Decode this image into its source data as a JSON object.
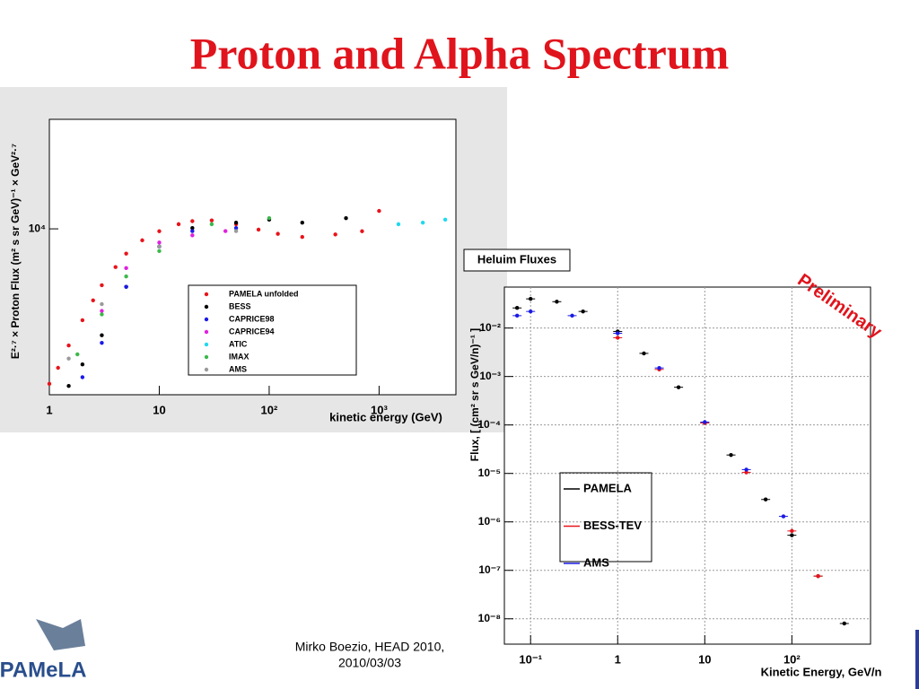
{
  "title": "Proton and Alpha Spectrum",
  "footer": {
    "author": "Mirko Boezio, HEAD 2010,",
    "date": "2010/03/03",
    "logo": "PAMeLA"
  },
  "chart_data": [
    {
      "type": "scatter",
      "log_x": true,
      "log_y": true,
      "grid": false,
      "x_label": "kinetic energy (GeV)",
      "y_label": "E²·⁷ × Proton Flux (m² s sr GeV)⁻¹ × GeV²·⁷",
      "xlim": [
        1,
        5000
      ],
      "ylim": [
        3500,
        20000
      ],
      "xticks": [
        1,
        10,
        {
          "value": 100,
          "label": "10²"
        },
        {
          "value": 1000,
          "label": "10³"
        }
      ],
      "yticks": [
        {
          "value": 10000,
          "label": "10⁴"
        }
      ],
      "series": [
        {
          "name": "PAMELA unfolded",
          "color": "#e8141b",
          "x": [
            1,
            1.2,
            1.5,
            2,
            2.5,
            3,
            4,
            5,
            7,
            10,
            15,
            20,
            30,
            50,
            80,
            120,
            200,
            400,
            700,
            1000
          ],
          "values": [
            3750,
            4150,
            4780,
            5610,
            6360,
            7000,
            7850,
            8550,
            9300,
            9850,
            10300,
            10500,
            10550,
            10300,
            9950,
            9690,
            9500,
            9650,
            9850,
            11200
          ]
        },
        {
          "name": "BESS",
          "color": "#000000",
          "x": [
            1.5,
            2,
            3,
            5,
            10,
            20,
            50,
            100,
            200,
            500
          ],
          "values": [
            3700,
            4240,
            5100,
            6930,
            8940,
            10050,
            10400,
            10600,
            10400,
            10700
          ]
        },
        {
          "name": "CAPRICE98",
          "color": "#1a1ae6",
          "x": [
            2,
            3,
            5,
            10,
            20,
            50
          ],
          "values": [
            3910,
            4860,
            6930,
            8940,
            9860,
            10050
          ]
        },
        {
          "name": "CAPRICE94",
          "color": "#e020e0",
          "x": [
            3,
            5,
            10,
            20,
            40
          ],
          "values": [
            5950,
            7800,
            9170,
            9600,
            9860
          ]
        },
        {
          "name": "ATIC",
          "color": "#20d8f0",
          "x": [
            1500,
            2500,
            4000
          ],
          "values": [
            10300,
            10400,
            10600
          ]
        },
        {
          "name": "IMAX",
          "color": "#3cb84a",
          "x": [
            1.8,
            3,
            5,
            10,
            30,
            100
          ],
          "values": [
            4520,
            5820,
            7400,
            8690,
            10300,
            10700
          ]
        },
        {
          "name": "AMS",
          "color": "#9a9a9a",
          "x": [
            1.5,
            3,
            10,
            50
          ],
          "values": [
            4400,
            6210,
            8940,
            9860
          ]
        }
      ]
    },
    {
      "type": "scatter",
      "log_x": true,
      "log_y": true,
      "grid": true,
      "title": "Heluim Fluxes",
      "annotation": "Preliminary",
      "x_label": "Kinetic Energy, GeV/n",
      "y_label": "Flux,  [ (cm² sr s GeV/n)⁻¹ ]",
      "xlim": [
        0.05,
        800
      ],
      "ylim": [
        3e-09,
        0.07
      ],
      "xticks": [
        {
          "value": 0.1,
          "label": "10⁻¹"
        },
        1,
        10,
        {
          "value": 100,
          "label": "10²"
        }
      ],
      "yticks": [
        {
          "value": 0.01,
          "label": "10⁻²"
        },
        {
          "value": 0.001,
          "label": "10⁻³"
        },
        {
          "value": 0.0001,
          "label": "10⁻⁴"
        },
        {
          "value": 1e-05,
          "label": "10⁻⁵"
        },
        {
          "value": 1e-06,
          "label": "10⁻⁶"
        },
        {
          "value": 1e-07,
          "label": "10⁻⁷"
        },
        {
          "value": 1e-08,
          "label": "10⁻⁸"
        }
      ],
      "series": [
        {
          "name": "PAMELA",
          "color": "#000000",
          "x": [
            0.07,
            0.1,
            0.2,
            0.4,
            1,
            2,
            5,
            10,
            20,
            50,
            100,
            200,
            400
          ],
          "values": [
            0.026,
            0.04,
            0.035,
            0.022,
            0.0085,
            0.003,
            0.0006,
            0.00011,
            2.4e-05,
            2.9e-06,
            5.3e-07,
            7.6e-08,
            8e-09
          ]
        },
        {
          "name": "BESS-TEV",
          "color": "#e8141b",
          "x": [
            1,
            3,
            10,
            30,
            100,
            200
          ],
          "values": [
            0.0063,
            0.0014,
            0.00011,
            1.05e-05,
            6.5e-07,
            7.6e-08
          ]
        },
        {
          "name": "AMS",
          "color": "#1a1ae6",
          "x": [
            0.07,
            0.1,
            0.3,
            1,
            3,
            10,
            30,
            80
          ],
          "values": [
            0.018,
            0.022,
            0.018,
            0.0078,
            0.0015,
            0.000115,
            1.2e-05,
            1.3e-06
          ]
        }
      ]
    }
  ]
}
